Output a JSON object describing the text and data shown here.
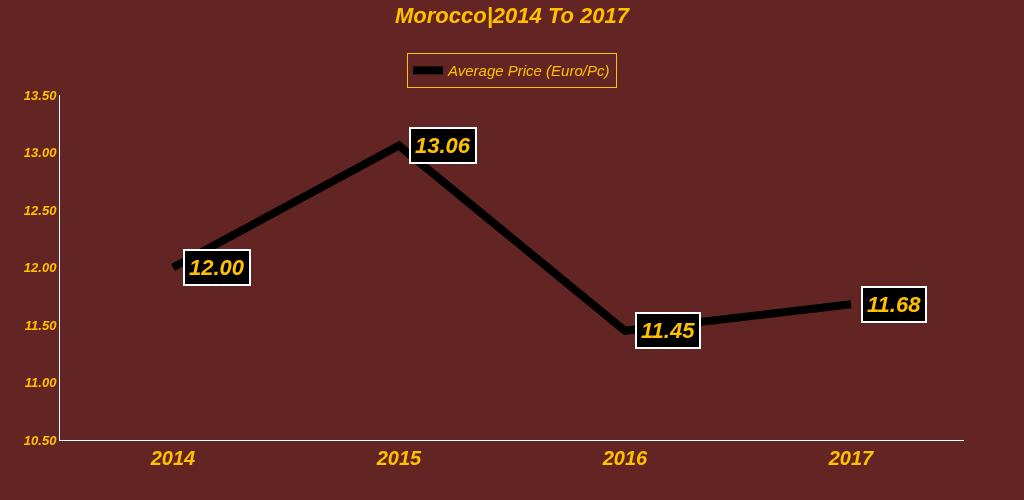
{
  "chart_data": {
    "type": "line",
    "title": "Morocco|2014 To 2017",
    "categories": [
      "2014",
      "2015",
      "2016",
      "2017"
    ],
    "series": [
      {
        "name": "Average Price (Euro/Pc)",
        "color": "#000000",
        "values": [
          12.0,
          13.06,
          11.45,
          11.68
        ],
        "value_labels": [
          "12.00",
          "13.06",
          "11.45",
          "11.68"
        ]
      }
    ],
    "ylim": [
      10.5,
      13.5
    ],
    "yticks": [
      {
        "value": 10.5,
        "label": "10.50"
      },
      {
        "value": 11.0,
        "label": "11.00"
      },
      {
        "value": 11.5,
        "label": "11.50"
      },
      {
        "value": 12.0,
        "label": "12.00"
      },
      {
        "value": 12.5,
        "label": "12.50"
      },
      {
        "value": 13.0,
        "label": "13.00"
      },
      {
        "value": 13.5,
        "label": "13.50"
      }
    ],
    "grid": false,
    "legend": "top",
    "marker": "none",
    "line_style": "solid"
  }
}
